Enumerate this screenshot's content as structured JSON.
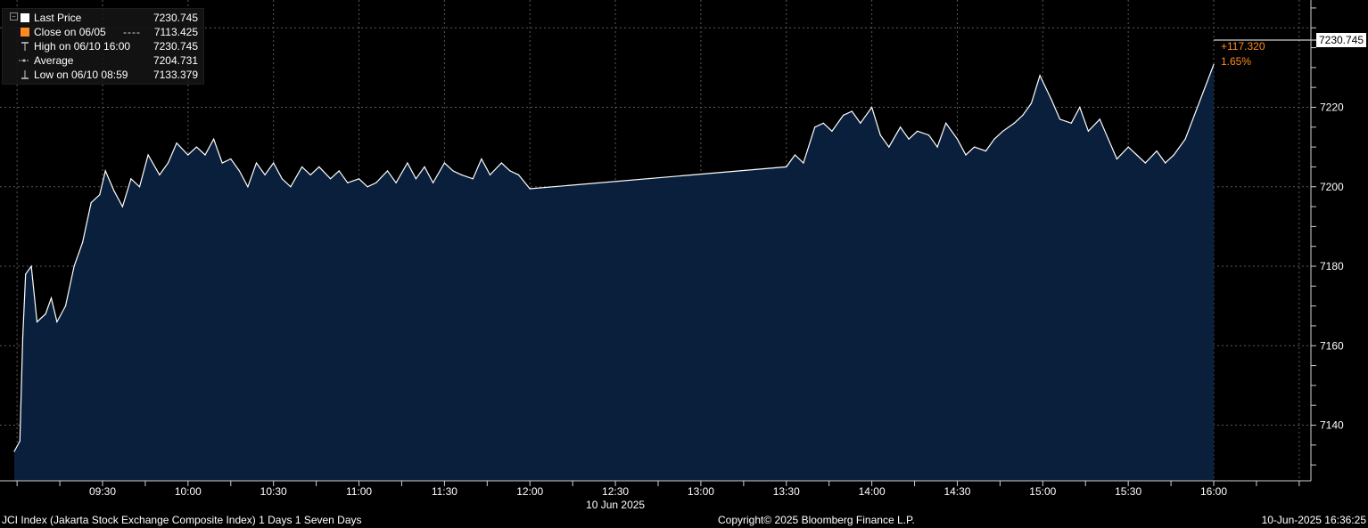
{
  "legend": {
    "items": [
      {
        "label": "Last Price",
        "dash": "",
        "value": "7230.745",
        "marker": "white-square"
      },
      {
        "label": "Close on 06/05",
        "dash": "----",
        "value": "7113.425",
        "marker": "orange-square"
      },
      {
        "label": "High on 06/10 16:00",
        "dash": "",
        "value": "7230.745",
        "marker": "high-icon"
      },
      {
        "label": "Average",
        "dash": "",
        "value": "7204.731",
        "marker": "average-icon"
      },
      {
        "label": "Low on 06/10 08:59",
        "dash": "",
        "value": "7133.379",
        "marker": "low-icon"
      }
    ]
  },
  "change": {
    "abs": "+117.320",
    "pct": "1.65%"
  },
  "last_tag": "7230.745",
  "footer": {
    "left": "JCI Index (Jakarta Stock Exchange Composite Index) 1 Days 1 Seven Days",
    "center": "Copyright© 2025 Bloomberg Finance L.P.",
    "right": "10-Jun-2025 16:36:25"
  },
  "colors": {
    "background": "#000000",
    "area_fill": "#0a1f3c",
    "line": "#ffffff",
    "grid": "#5a5a5a",
    "accent": "#ff8a1f"
  },
  "chart_data": {
    "type": "area",
    "title": "",
    "xlabel": "10 Jun 2025",
    "ylabel": "",
    "xlim": [
      "09:00",
      "16:30"
    ],
    "ylim": [
      7126,
      7247
    ],
    "x_ticks": [
      "09:30",
      "10:00",
      "10:30",
      "11:00",
      "11:30",
      "12:00",
      "12:30",
      "13:00",
      "13:30",
      "14:00",
      "14:30",
      "15:00",
      "15:30",
      "16:00"
    ],
    "y_ticks": [
      7140,
      7160,
      7180,
      7200,
      7220
    ],
    "grid": true,
    "legend_position": "top-left",
    "series": [
      {
        "name": "Last Price",
        "x": [
          "08:59",
          "09:01",
          "09:02",
          "09:03",
          "09:05",
          "09:07",
          "09:10",
          "09:12",
          "09:14",
          "09:17",
          "09:20",
          "09:23",
          "09:26",
          "09:29",
          "09:31",
          "09:34",
          "09:37",
          "09:40",
          "09:43",
          "09:46",
          "09:50",
          "09:53",
          "09:56",
          "10:00",
          "10:03",
          "10:06",
          "10:09",
          "10:12",
          "10:15",
          "10:18",
          "10:21",
          "10:24",
          "10:27",
          "10:30",
          "10:33",
          "10:36",
          "10:40",
          "10:43",
          "10:46",
          "10:50",
          "10:53",
          "10:56",
          "11:00",
          "11:03",
          "11:06",
          "11:10",
          "11:13",
          "11:17",
          "11:20",
          "11:23",
          "11:26",
          "11:30",
          "11:33",
          "11:36",
          "11:40",
          "11:43",
          "11:46",
          "11:50",
          "11:53",
          "11:56",
          "12:00",
          "13:30",
          "13:33",
          "13:36",
          "13:40",
          "13:43",
          "13:46",
          "13:50",
          "13:53",
          "13:56",
          "14:00",
          "14:03",
          "14:06",
          "14:10",
          "14:13",
          "14:16",
          "14:20",
          "14:23",
          "14:26",
          "14:30",
          "14:33",
          "14:36",
          "14:40",
          "14:43",
          "14:46",
          "14:50",
          "14:53",
          "14:56",
          "14:59",
          "15:01",
          "15:03",
          "15:06",
          "15:10",
          "15:13",
          "15:16",
          "15:20",
          "15:23",
          "15:26",
          "15:30",
          "15:33",
          "15:36",
          "15:40",
          "15:43",
          "15:46",
          "15:50",
          "16:00"
        ],
        "values": [
          7133.4,
          7136,
          7162,
          7178,
          7180,
          7166,
          7168,
          7172,
          7166,
          7170,
          7180,
          7186,
          7196,
          7198,
          7204,
          7199,
          7195,
          7202,
          7200,
          7208,
          7203,
          7206,
          7211,
          7208,
          7210,
          7208,
          7212,
          7206,
          7207,
          7204,
          7200,
          7206,
          7203,
          7206,
          7202,
          7200,
          7205,
          7203,
          7205,
          7202,
          7204,
          7201,
          7202,
          7200,
          7201,
          7204,
          7201,
          7206,
          7202,
          7205,
          7201,
          7206,
          7204,
          7203,
          7202,
          7207,
          7203,
          7206,
          7204,
          7203,
          7199.5,
          7205,
          7208,
          7206,
          7215,
          7216,
          7214,
          7218,
          7219,
          7216,
          7220,
          7213,
          7210,
          7215,
          7212,
          7214,
          7213,
          7210,
          7216,
          7212,
          7208,
          7210,
          7209,
          7212,
          7214,
          7216,
          7218,
          7221,
          7228,
          7225,
          7222,
          7217,
          7216,
          7220,
          7214,
          7217,
          7212,
          7207,
          7210,
          7208,
          7206,
          7209,
          7206,
          7208,
          7212,
          7230.745
        ]
      }
    ],
    "reference_lines": [
      {
        "name": "Close on 06/05",
        "value": 7113.425
      }
    ]
  }
}
